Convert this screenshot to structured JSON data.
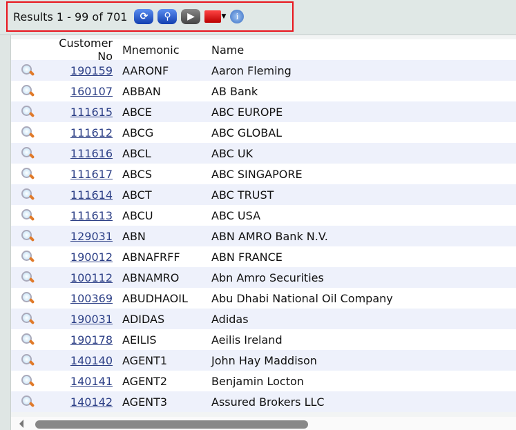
{
  "toolbar": {
    "results_text": "Results 1 - 99 of 701",
    "icons": [
      "refresh-icon",
      "search-icon",
      "play-icon",
      "toolbox-icon",
      "info-icon"
    ],
    "info_glyph": "i",
    "highlight_color": "#e8141c"
  },
  "columns": [
    "Customer No",
    "Mnemonic",
    "Name"
  ],
  "rows": [
    {
      "no": "190159",
      "mnemonic": "AARONF",
      "name": "Aaron Fleming"
    },
    {
      "no": "160107",
      "mnemonic": "ABBAN",
      "name": "AB Bank"
    },
    {
      "no": "111615",
      "mnemonic": "ABCE",
      "name": "ABC EUROPE"
    },
    {
      "no": "111612",
      "mnemonic": "ABCG",
      "name": "ABC GLOBAL"
    },
    {
      "no": "111616",
      "mnemonic": "ABCL",
      "name": "ABC UK"
    },
    {
      "no": "111617",
      "mnemonic": "ABCS",
      "name": "ABC SINGAPORE"
    },
    {
      "no": "111614",
      "mnemonic": "ABCT",
      "name": "ABC TRUST"
    },
    {
      "no": "111613",
      "mnemonic": "ABCU",
      "name": "ABC USA"
    },
    {
      "no": "129031",
      "mnemonic": "ABN",
      "name": "ABN AMRO Bank N.V."
    },
    {
      "no": "190012",
      "mnemonic": "ABNAFRFF",
      "name": "ABN FRANCE"
    },
    {
      "no": "100112",
      "mnemonic": "ABNAMRO",
      "name": "Abn Amro Securities"
    },
    {
      "no": "100369",
      "mnemonic": "ABUDHAOIL",
      "name": "Abu Dhabi National Oil Company"
    },
    {
      "no": "190031",
      "mnemonic": "ADIDAS",
      "name": "Adidas"
    },
    {
      "no": "190178",
      "mnemonic": "AEILIS",
      "name": "Aeilis Ireland"
    },
    {
      "no": "140140",
      "mnemonic": "AGENT1",
      "name": "John Hay Maddison"
    },
    {
      "no": "140141",
      "mnemonic": "AGENT2",
      "name": "Benjamin Locton"
    },
    {
      "no": "140142",
      "mnemonic": "AGENT3",
      "name": "Assured Brokers LLC"
    }
  ]
}
